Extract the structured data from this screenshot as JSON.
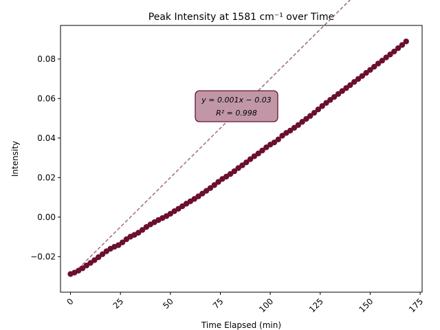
{
  "chart_data": {
    "type": "scatter",
    "title": "Peak Intensity at 1581 cm⁻¹ over Time",
    "xlabel": "Time Elapsed (min)",
    "ylabel": "Intensity",
    "xlim": [
      -5,
      176
    ],
    "ylim": [
      -0.038,
      0.097
    ],
    "xticks": [
      0,
      25,
      50,
      75,
      100,
      125,
      150,
      175
    ],
    "xtick_labels": [
      "0",
      "25",
      "50",
      "75",
      "100",
      "125",
      "150",
      "175"
    ],
    "yticks": [
      -0.02,
      0.0,
      0.02,
      0.04,
      0.06,
      0.08
    ],
    "ytick_labels": [
      "−0.02",
      "0.00",
      "0.02",
      "0.04",
      "0.06",
      "0.08"
    ],
    "grid": false,
    "colors": {
      "points": "#6b0f2e",
      "fit_line": "#8c4a62",
      "box_fill": "#c197a8",
      "box_edge": "#6b0f2e"
    },
    "fit": {
      "slope": 0.001,
      "intercept": -0.03
    },
    "annotation": {
      "line1": "y = 0.001x − 0.03",
      "line2": "R² = 0.998"
    },
    "series": [
      {
        "x": [
          0,
          2,
          4,
          6,
          8,
          10,
          12,
          14,
          16,
          18,
          20,
          22,
          24,
          26,
          28,
          30,
          32,
          34,
          36,
          38,
          40,
          42,
          44,
          46,
          48,
          50,
          52,
          54,
          56,
          58,
          60,
          62,
          64,
          66,
          68,
          70,
          72,
          74,
          76,
          78,
          80,
          82,
          84,
          86,
          88,
          90,
          92,
          94,
          96,
          98,
          100,
          102,
          104,
          106,
          108,
          110,
          112,
          114,
          116,
          118,
          120,
          122,
          124,
          126,
          128,
          130,
          132,
          134,
          136,
          138,
          140,
          142,
          144,
          146,
          148,
          150,
          152,
          154,
          156,
          158,
          160,
          162,
          164,
          166,
          168
        ],
        "y": [
          -0.0288,
          -0.0281,
          -0.0271,
          -0.0259,
          -0.0245,
          -0.0232,
          -0.0218,
          -0.0203,
          -0.0188,
          -0.0173,
          -0.016,
          -0.015,
          -0.0142,
          -0.0128,
          -0.0112,
          -0.0099,
          -0.009,
          -0.0079,
          -0.0065,
          -0.005,
          -0.0037,
          -0.0026,
          -0.0015,
          -0.0005,
          0.0005,
          0.0017,
          0.003,
          0.0042,
          0.0055,
          0.0068,
          0.008,
          0.0092,
          0.0105,
          0.0119,
          0.0133,
          0.0147,
          0.0162,
          0.0178,
          0.0193,
          0.0205,
          0.0218,
          0.0232,
          0.0248,
          0.0262,
          0.0277,
          0.0293,
          0.0308,
          0.0322,
          0.0337,
          0.0353,
          0.0367,
          0.0378,
          0.0393,
          0.0412,
          0.0426,
          0.0438,
          0.0452,
          0.0466,
          0.0482,
          0.0497,
          0.0512,
          0.0528,
          0.0545,
          0.0562,
          0.0578,
          0.0593,
          0.0608,
          0.0623,
          0.0638,
          0.0653,
          0.0668,
          0.0684,
          0.0699,
          0.0714,
          0.073,
          0.0745,
          0.0761,
          0.0777,
          0.0792,
          0.0808,
          0.0823,
          0.0838,
          0.0855,
          0.0871,
          0.0889
        ]
      }
    ]
  }
}
